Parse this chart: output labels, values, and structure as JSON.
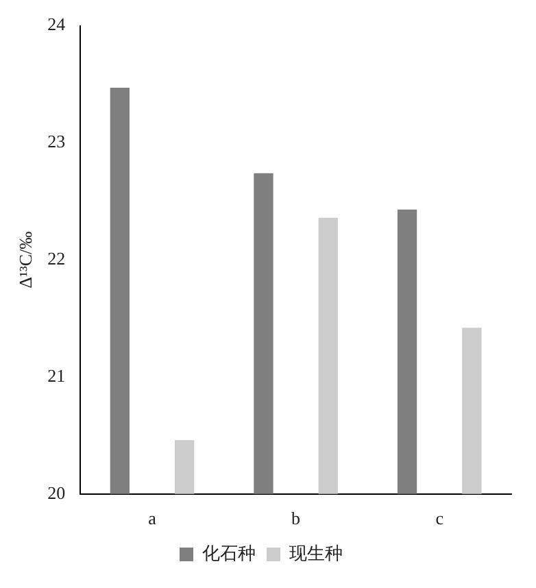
{
  "chart_data": {
    "type": "bar",
    "ylabel": "Δ¹³C/‰",
    "categories": [
      "a",
      "b",
      "c"
    ],
    "series": [
      {
        "name": "化石种",
        "color": "#7f7f7f",
        "values": [
          23.47,
          22.74,
          22.43
        ]
      },
      {
        "name": "现生种",
        "color": "#cccccc",
        "values": [
          20.46,
          22.36,
          21.42
        ]
      }
    ],
    "ylim": [
      20,
      24
    ],
    "yticks": [
      20,
      21,
      22,
      23,
      24
    ],
    "grid": false,
    "legend": "bottom"
  }
}
